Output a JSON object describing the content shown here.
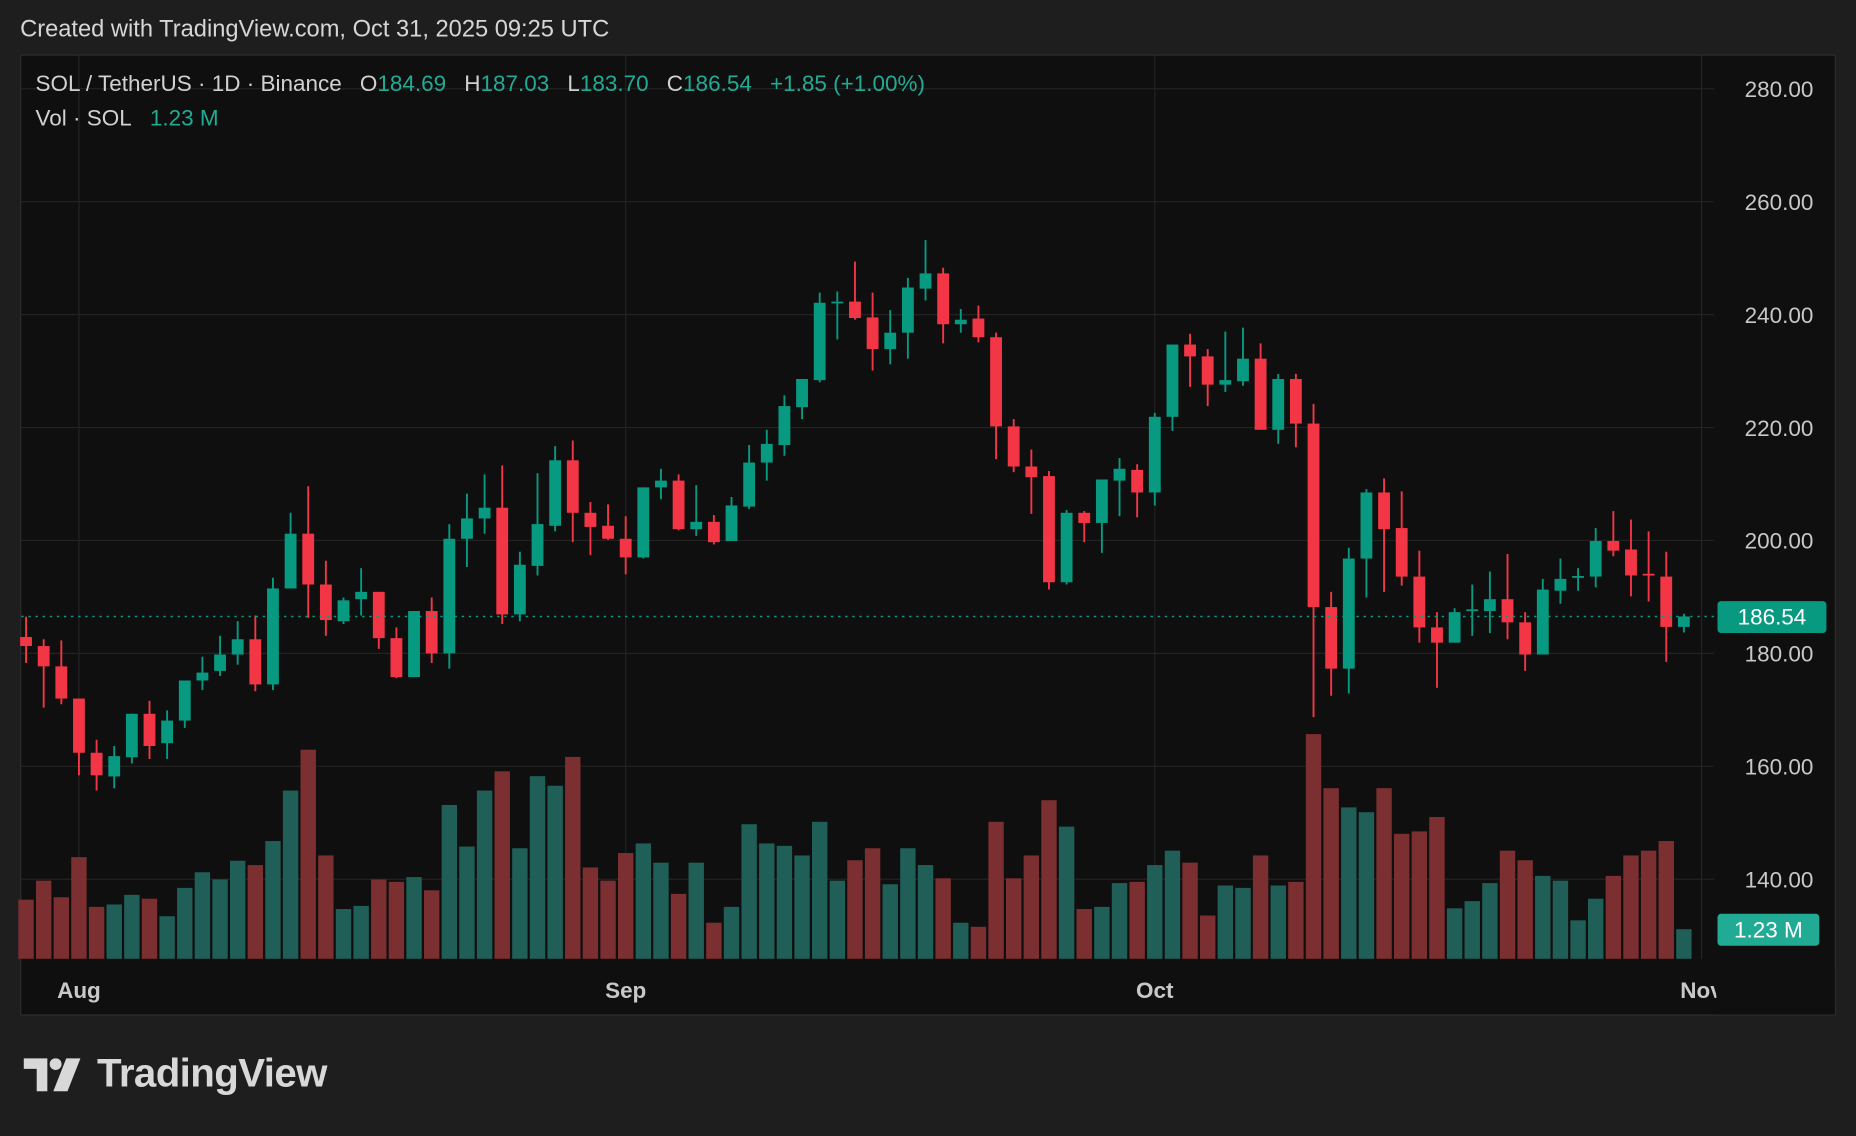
{
  "credit": "Created with TradingView.com, Oct 31, 2025 09:25 UTC",
  "legend": {
    "symbol": "SOL / TetherUS · 1D · Binance",
    "o_label": "O",
    "o": "184.69",
    "h_label": "H",
    "h": "187.03",
    "l_label": "L",
    "l": "183.70",
    "c_label": "C",
    "c": "186.54",
    "change": "+1.85 (+1.00%)",
    "vol_label": "Vol · SOL",
    "vol": "1.23 M"
  },
  "logo_text": "TradingView",
  "colors": {
    "up": "#089981",
    "down": "#f23645",
    "vol_up": "#1f5f57",
    "vol_down": "#7c2f31",
    "background": "#0f0f0f",
    "grid": "#232323",
    "last_price_label": "#089981",
    "vol_label": "#22ab94"
  },
  "chart_data": {
    "type": "candlestick",
    "ylim": [
      130,
      285
    ],
    "y_ticks": [
      "280.00",
      "260.00",
      "240.00",
      "220.00",
      "200.00",
      "180.00",
      "160.00",
      "140.00"
    ],
    "y_tick_values": [
      280,
      260,
      240,
      220,
      200,
      180,
      160,
      140
    ],
    "x_ticks": [
      "Aug",
      "Sep",
      "Oct",
      "Nov"
    ],
    "last_price": 186.54,
    "last_price_label": "186.54",
    "last_volume_label": "1.23 M",
    "grid": true,
    "first_date": "2025-07-29",
    "fields": [
      "open",
      "high",
      "low",
      "close",
      "volume_M"
    ],
    "candles": [
      [
        182.9,
        186.5,
        178.3,
        181.3,
        2.46
      ],
      [
        181.3,
        182.5,
        170.4,
        177.7,
        3.25
      ],
      [
        177.7,
        182.3,
        171.0,
        172.0,
        2.56
      ],
      [
        172.0,
        172.0,
        158.4,
        162.4,
        4.23
      ],
      [
        162.4,
        164.7,
        155.7,
        158.4,
        2.16
      ],
      [
        158.2,
        163.6,
        156.1,
        161.8,
        2.26
      ],
      [
        161.6,
        169.3,
        160.5,
        169.3,
        2.66
      ],
      [
        169.3,
        171.6,
        161.3,
        163.6,
        2.5
      ],
      [
        164.1,
        169.9,
        161.3,
        168.1,
        1.77
      ],
      [
        168.1,
        175.2,
        166.8,
        175.2,
        2.95
      ],
      [
        175.2,
        179.4,
        173.5,
        176.6,
        3.6
      ],
      [
        176.9,
        183.1,
        176.0,
        179.8,
        3.3
      ],
      [
        179.8,
        185.7,
        178.0,
        182.5,
        4.08
      ],
      [
        182.5,
        186.7,
        173.3,
        174.5,
        3.9
      ],
      [
        174.5,
        193.4,
        173.5,
        191.5,
        4.9
      ],
      [
        191.5,
        204.9,
        191.5,
        201.2,
        7.0
      ],
      [
        201.2,
        209.6,
        186.3,
        192.2,
        8.7
      ],
      [
        192.2,
        196.4,
        183.1,
        185.9,
        4.3
      ],
      [
        185.7,
        189.9,
        185.2,
        189.4,
        2.07
      ],
      [
        189.6,
        195.1,
        186.7,
        190.9,
        2.2
      ],
      [
        190.9,
        190.9,
        180.8,
        182.7,
        3.3
      ],
      [
        182.7,
        184.6,
        175.6,
        175.8,
        3.2
      ],
      [
        175.8,
        187.5,
        175.8,
        187.5,
        3.4
      ],
      [
        187.5,
        189.9,
        178.3,
        180.0,
        2.85
      ],
      [
        180.0,
        202.9,
        177.3,
        200.3,
        6.4
      ],
      [
        200.3,
        208.3,
        195.3,
        203.9,
        4.67
      ],
      [
        203.9,
        211.7,
        201.2,
        205.8,
        7.0
      ],
      [
        205.8,
        213.3,
        185.2,
        186.9,
        7.8
      ],
      [
        186.9,
        198.0,
        185.7,
        195.7,
        4.6
      ],
      [
        195.5,
        211.9,
        193.8,
        202.9,
        7.6
      ],
      [
        202.6,
        216.7,
        201.6,
        214.2,
        7.2
      ],
      [
        214.2,
        217.7,
        199.7,
        204.9,
        8.4
      ],
      [
        204.9,
        206.8,
        197.4,
        202.4,
        3.8
      ],
      [
        202.6,
        206.4,
        200.1,
        200.3,
        3.25
      ],
      [
        200.3,
        204.3,
        194.0,
        197.0,
        4.4
      ],
      [
        197.0,
        209.4,
        196.8,
        209.4,
        4.8
      ],
      [
        209.4,
        212.7,
        207.3,
        210.6,
        4.0
      ],
      [
        210.6,
        211.7,
        201.8,
        202.0,
        2.7
      ],
      [
        202.0,
        209.8,
        200.8,
        203.3,
        4.0
      ],
      [
        203.3,
        204.5,
        199.3,
        199.7,
        1.5
      ],
      [
        199.9,
        207.7,
        199.9,
        206.2,
        2.16
      ],
      [
        206.0,
        216.9,
        205.6,
        213.8,
        5.6
      ],
      [
        213.8,
        219.6,
        210.6,
        217.1,
        4.8
      ],
      [
        216.9,
        225.7,
        215.0,
        223.8,
        4.7
      ],
      [
        223.6,
        228.6,
        221.5,
        228.6,
        4.3
      ],
      [
        228.4,
        243.9,
        228.0,
        242.1,
        5.7
      ],
      [
        242.0,
        244.1,
        235.6,
        242.3,
        3.25
      ],
      [
        242.3,
        249.4,
        239.1,
        239.4,
        4.1
      ],
      [
        239.5,
        243.9,
        230.1,
        233.9,
        4.6
      ],
      [
        233.9,
        240.8,
        231.2,
        236.8,
        3.1
      ],
      [
        236.8,
        246.5,
        232.2,
        244.8,
        4.6
      ],
      [
        244.6,
        253.2,
        242.5,
        247.3,
        3.9
      ],
      [
        247.3,
        248.3,
        234.9,
        238.3,
        3.35
      ],
      [
        238.3,
        241.0,
        236.8,
        239.1,
        1.5
      ],
      [
        239.3,
        241.6,
        235.1,
        236.0,
        1.33
      ],
      [
        236.0,
        236.8,
        214.4,
        220.2,
        5.7
      ],
      [
        220.2,
        221.5,
        212.1,
        213.1,
        3.35
      ],
      [
        213.1,
        216.1,
        204.7,
        211.2,
        4.3
      ],
      [
        211.4,
        212.3,
        191.3,
        192.6,
        6.6
      ],
      [
        192.6,
        205.4,
        192.2,
        204.9,
        5.5
      ],
      [
        204.9,
        205.2,
        199.7,
        203.1,
        2.07
      ],
      [
        203.1,
        210.8,
        197.8,
        210.8,
        2.16
      ],
      [
        210.6,
        214.6,
        204.3,
        212.7,
        3.15
      ],
      [
        212.5,
        213.5,
        204.1,
        208.5,
        3.2
      ],
      [
        208.5,
        222.6,
        206.2,
        221.9,
        3.9
      ],
      [
        221.9,
        234.7,
        219.4,
        234.7,
        4.5
      ],
      [
        234.7,
        236.6,
        227.2,
        232.6,
        4.0
      ],
      [
        232.6,
        233.9,
        223.8,
        227.6,
        1.8
      ],
      [
        227.6,
        237.0,
        226.3,
        228.4,
        3.05
      ],
      [
        228.2,
        237.7,
        227.4,
        232.2,
        2.95
      ],
      [
        232.2,
        234.9,
        219.6,
        219.6,
        4.3
      ],
      [
        219.6,
        229.5,
        217.1,
        228.6,
        3.05
      ],
      [
        228.6,
        229.5,
        216.5,
        220.7,
        3.2
      ],
      [
        220.7,
        224.2,
        168.7,
        188.2,
        9.35
      ],
      [
        188.2,
        190.9,
        172.5,
        177.3,
        7.1
      ],
      [
        177.3,
        198.7,
        172.9,
        196.8,
        6.3
      ],
      [
        196.8,
        209.1,
        189.9,
        208.5,
        6.1
      ],
      [
        208.5,
        211.0,
        190.9,
        202.0,
        7.1
      ],
      [
        202.2,
        208.7,
        192.0,
        193.6,
        5.2
      ],
      [
        193.6,
        198.2,
        181.9,
        184.6,
        5.3
      ],
      [
        184.6,
        187.3,
        173.9,
        181.9,
        5.9
      ],
      [
        181.9,
        188.0,
        181.9,
        187.3,
        2.1
      ],
      [
        187.6,
        192.2,
        183.1,
        187.8,
        2.4
      ],
      [
        187.5,
        194.5,
        183.6,
        189.6,
        3.15
      ],
      [
        189.6,
        197.6,
        182.5,
        185.5,
        4.5
      ],
      [
        185.5,
        187.3,
        176.9,
        179.8,
        4.1
      ],
      [
        179.8,
        193.2,
        179.8,
        191.3,
        3.45
      ],
      [
        191.1,
        196.8,
        188.8,
        193.2,
        3.25
      ],
      [
        193.4,
        195.1,
        191.1,
        193.7,
        1.6
      ],
      [
        193.6,
        202.2,
        191.7,
        199.9,
        2.5
      ],
      [
        199.9,
        205.2,
        197.2,
        198.2,
        3.45
      ],
      [
        198.4,
        203.7,
        190.1,
        193.8,
        4.3
      ],
      [
        194.1,
        201.6,
        189.2,
        194.0,
        4.5
      ],
      [
        193.6,
        198.0,
        178.5,
        184.69,
        4.9
      ],
      [
        184.69,
        187.03,
        183.7,
        186.54,
        1.23
      ]
    ]
  }
}
